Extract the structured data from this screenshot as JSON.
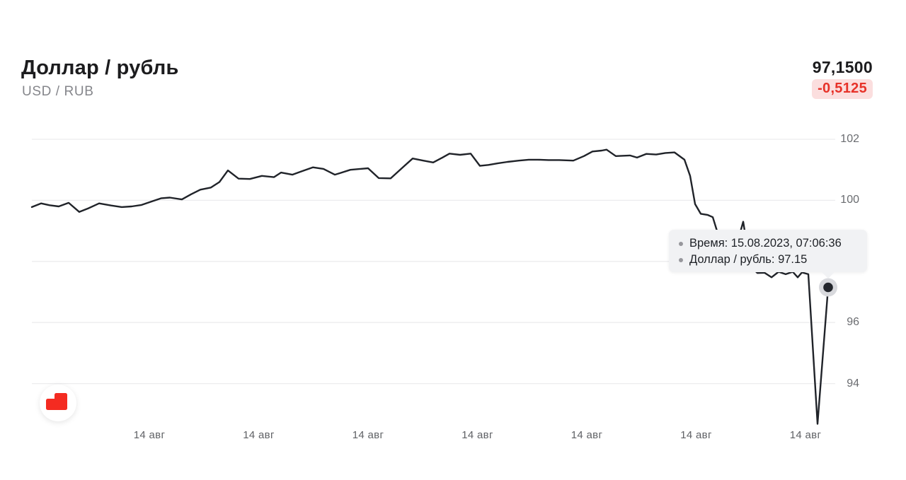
{
  "header": {
    "title": "Доллар / рубль",
    "subtitle": "USD / RUB",
    "price": "97,1500",
    "change": "-0,5125"
  },
  "tooltip": {
    "rows": [
      "Время: 15.08.2023, 07:06:36",
      "Доллар / рубль: 97.15"
    ],
    "bullet_icon": "dot-icon"
  },
  "icons": {
    "logo": "broker-logo-red-steps"
  },
  "colors": {
    "accent_red": "#e73229",
    "badge_bg": "#fbdede",
    "line": "#202329",
    "grid": "#ececee",
    "axis_text": "#6a6c70",
    "tooltip_bg": "#f1f2f4",
    "marker_dot": "#23262c",
    "marker_halo": "#d8d9dd",
    "logo_red": "#f42b21"
  },
  "chart_data": {
    "type": "line",
    "title": "Доллар / рубль (USD / RUB)",
    "grid": true,
    "legend": "none",
    "y_ticks": [
      102,
      100,
      98,
      96,
      94
    ],
    "ylim": [
      92.5,
      102.3
    ],
    "x_tick_labels": [
      "14 авг",
      "14 авг",
      "14 авг",
      "14 авг",
      "14 авг",
      "14 авг",
      "14 авг"
    ],
    "last_point": {
      "time": "15.08.2023, 07:06:36",
      "value": 97.15
    },
    "series": [
      {
        "name": "Доллар / рубль",
        "points": [
          [
            45,
            99.78
          ],
          [
            58,
            99.9
          ],
          [
            70,
            99.84
          ],
          [
            83,
            99.8
          ],
          [
            97,
            99.92
          ],
          [
            112,
            99.62
          ],
          [
            125,
            99.74
          ],
          [
            140,
            99.9
          ],
          [
            157,
            99.83
          ],
          [
            172,
            99.78
          ],
          [
            186,
            99.8
          ],
          [
            200,
            99.85
          ],
          [
            215,
            99.97
          ],
          [
            228,
            100.07
          ],
          [
            240,
            100.09
          ],
          [
            257,
            100.03
          ],
          [
            270,
            100.2
          ],
          [
            283,
            100.35
          ],
          [
            298,
            100.42
          ],
          [
            310,
            100.6
          ],
          [
            322,
            100.98
          ],
          [
            337,
            100.71
          ],
          [
            353,
            100.7
          ],
          [
            370,
            100.8
          ],
          [
            387,
            100.76
          ],
          [
            397,
            100.91
          ],
          [
            413,
            100.84
          ],
          [
            425,
            100.94
          ],
          [
            442,
            101.08
          ],
          [
            457,
            101.03
          ],
          [
            473,
            100.84
          ],
          [
            480,
            100.89
          ],
          [
            495,
            101.0
          ],
          [
            520,
            101.05
          ],
          [
            535,
            100.73
          ],
          [
            552,
            100.72
          ],
          [
            570,
            101.1
          ],
          [
            583,
            101.37
          ],
          [
            598,
            101.3
          ],
          [
            612,
            101.24
          ],
          [
            625,
            101.4
          ],
          [
            635,
            101.53
          ],
          [
            650,
            101.49
          ],
          [
            665,
            101.53
          ],
          [
            678,
            101.13
          ],
          [
            690,
            101.16
          ],
          [
            703,
            101.21
          ],
          [
            717,
            101.26
          ],
          [
            733,
            101.3
          ],
          [
            747,
            101.33
          ],
          [
            760,
            101.33
          ],
          [
            775,
            101.32
          ],
          [
            790,
            101.32
          ],
          [
            810,
            101.3
          ],
          [
            825,
            101.45
          ],
          [
            837,
            101.6
          ],
          [
            850,
            101.63
          ],
          [
            857,
            101.66
          ],
          [
            870,
            101.45
          ],
          [
            890,
            101.47
          ],
          [
            900,
            101.4
          ],
          [
            913,
            101.52
          ],
          [
            927,
            101.5
          ],
          [
            940,
            101.55
          ],
          [
            953,
            101.57
          ],
          [
            967,
            101.33
          ],
          [
            975,
            100.8
          ],
          [
            982,
            99.88
          ],
          [
            990,
            99.56
          ],
          [
            1000,
            99.52
          ],
          [
            1007,
            99.45
          ],
          [
            1013,
            99.0
          ],
          [
            1020,
            98.5
          ],
          [
            1028,
            98.05
          ],
          [
            1038,
            98.3
          ],
          [
            1050,
            99.3
          ],
          [
            1060,
            97.85
          ],
          [
            1070,
            97.62
          ],
          [
            1080,
            97.63
          ],
          [
            1090,
            97.48
          ],
          [
            1100,
            97.66
          ],
          [
            1110,
            97.58
          ],
          [
            1120,
            97.66
          ],
          [
            1127,
            97.48
          ],
          [
            1133,
            97.64
          ],
          [
            1142,
            97.58
          ],
          [
            1155,
            92.68
          ],
          [
            1170,
            97.15
          ]
        ]
      }
    ]
  }
}
